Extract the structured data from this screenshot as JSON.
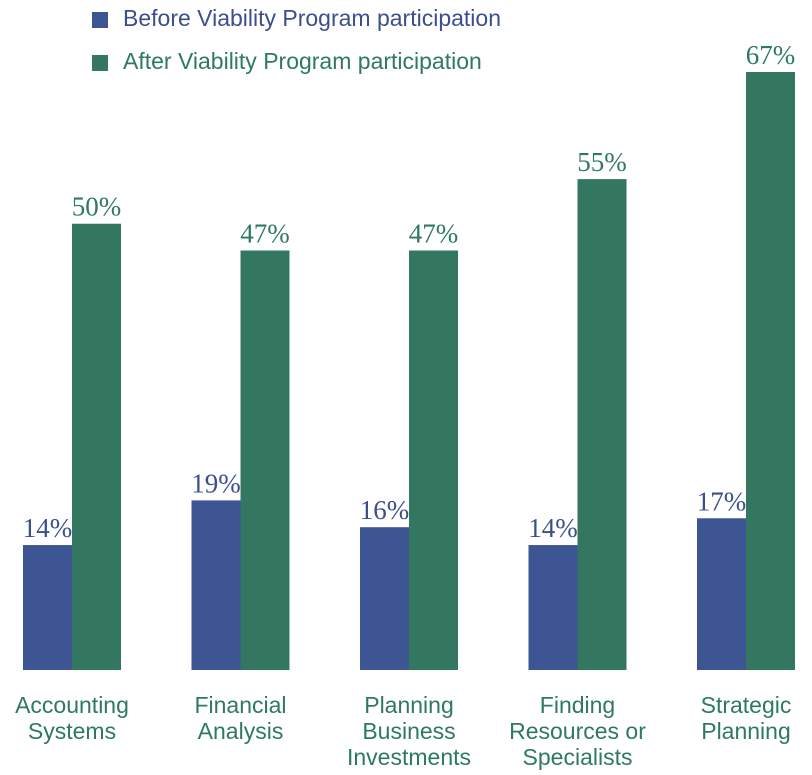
{
  "chart_data": {
    "type": "bar",
    "categories": [
      "Accounting Systems",
      "Financial Analysis",
      "Planning Business Investments",
      "Finding Resources or Specialists",
      "Strategic Planning"
    ],
    "series": [
      {
        "name": "Before Viability Program participation",
        "color": "#3d5592",
        "values": [
          14,
          19,
          16,
          14,
          17
        ],
        "value_labels": [
          "14%",
          "19%",
          "16%",
          "14%",
          "17%"
        ]
      },
      {
        "name": "After Viability Program participation",
        "color": "#337761",
        "values": [
          50,
          47,
          47,
          55,
          67
        ],
        "value_labels": [
          "50%",
          "47%",
          "47%",
          "55%",
          "67%"
        ]
      }
    ],
    "legend": "top-left"
  }
}
